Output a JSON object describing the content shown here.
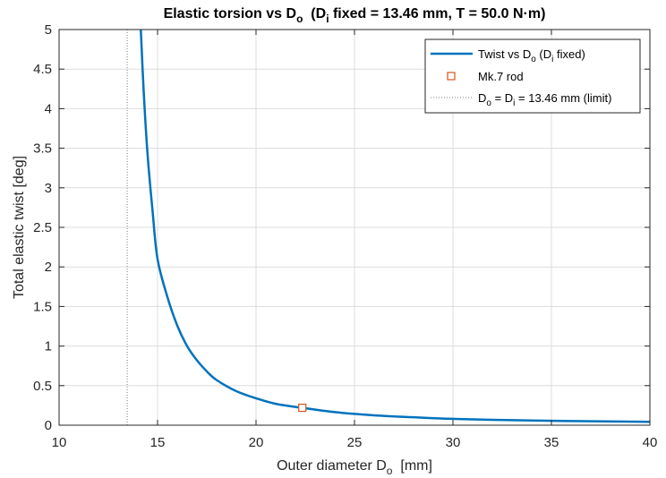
{
  "chart_data": {
    "type": "line",
    "title": {
      "prefix": "Elastic torsion vs D",
      "prefix_sub": "o",
      "mid": "  (D",
      "mid_sub": "i",
      "suffix": " fixed = 13.46 mm, T = 50.0 N·m)"
    },
    "xlabel": {
      "main": "Outer diameter D",
      "sub": "o",
      "unit": "  [mm]"
    },
    "ylabel": "Total elastic twist  [deg]",
    "xlim": [
      10,
      40
    ],
    "ylim": [
      0,
      5
    ],
    "xticks": [
      "10",
      "15",
      "20",
      "25",
      "30",
      "35",
      "40"
    ],
    "yticks": [
      "0",
      "0.5",
      "1",
      "1.5",
      "2",
      "2.5",
      "3",
      "3.5",
      "4",
      "4.5",
      "5"
    ],
    "grid": true,
    "legend_position": "top-right",
    "series": [
      {
        "name": {
          "main": "Twist vs D",
          "sub": "o",
          "rest": " (D",
          "sub2": "i",
          "end": " fixed)"
        },
        "color": "#0072BD",
        "x": [
          14.15,
          14.3,
          14.5,
          14.75,
          15,
          15.5,
          16,
          16.5,
          17,
          17.5,
          18,
          19,
          20,
          21,
          22.33,
          24,
          26,
          28,
          30,
          33,
          36,
          40
        ],
        "y": [
          5.0,
          4.2,
          3.4,
          2.7,
          2.1,
          1.62,
          1.26,
          1.0,
          0.82,
          0.68,
          0.57,
          0.43,
          0.34,
          0.27,
          0.22,
          0.165,
          0.125,
          0.1,
          0.08,
          0.063,
          0.052,
          0.043
        ]
      },
      {
        "name": "Mk.7 rod",
        "marker": "square",
        "color": "#D95319",
        "x": [
          22.35
        ],
        "y": [
          0.22
        ]
      },
      {
        "name": {
          "a": "D",
          "a_sub": "o",
          "b": " = D",
          "b_sub": "i",
          "c": " = 13.46 mm (limit)"
        },
        "style": "dotted",
        "color": "#808080",
        "x": [
          13.46,
          13.46
        ],
        "y": [
          0,
          5
        ]
      }
    ]
  }
}
